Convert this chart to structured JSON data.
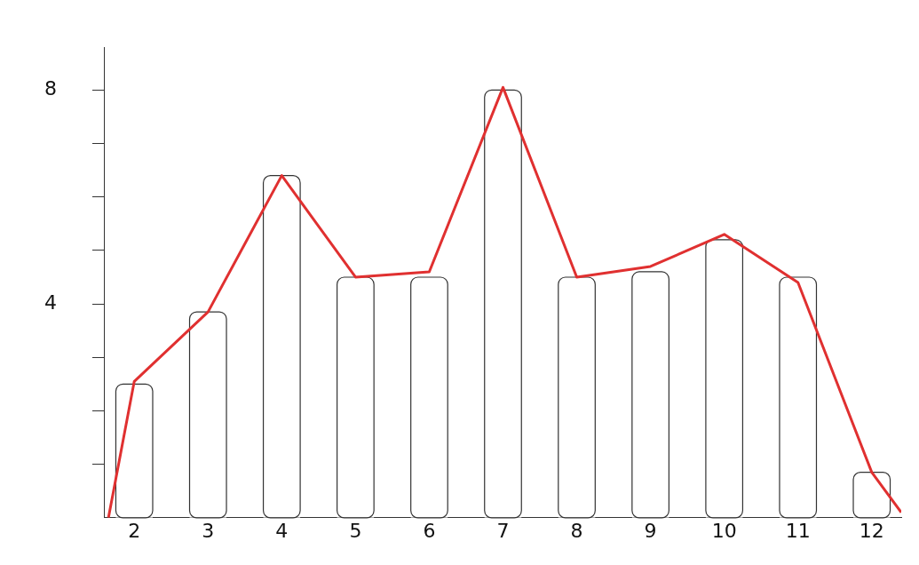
{
  "chart_data": {
    "type": "bar",
    "x": [
      2,
      3,
      4,
      5,
      6,
      7,
      8,
      9,
      10,
      11,
      12
    ],
    "series": [
      {
        "color": "#ffffff",
        "values": [
          2.5,
          3.85,
          6.4,
          4.5,
          4.5,
          8,
          4.5,
          4.6,
          5.2,
          4.5,
          0.85
        ]
      },
      {
        "type": "line",
        "color": "#e03030",
        "x": [
          1.65,
          2,
          3,
          4,
          5,
          6,
          7,
          8,
          9,
          10,
          11,
          12,
          12.4
        ],
        "values": [
          0,
          2.55,
          3.85,
          6.4,
          4.5,
          4.6,
          8.05,
          4.5,
          4.7,
          5.3,
          4.4,
          0.85,
          0.1
        ]
      }
    ],
    "xlim": [
      1.6,
      12.4
    ],
    "xticks": [
      2,
      3,
      4,
      5,
      6,
      7,
      8,
      9,
      10,
      11,
      12
    ],
    "ylim": [
      0,
      8.8
    ],
    "yticks": [
      {
        "value": 1,
        "label": null
      },
      {
        "value": 2,
        "label": null
      },
      {
        "value": 3,
        "label": null
      },
      4,
      {
        "value": 5,
        "label": null
      },
      {
        "value": 6,
        "label": null
      },
      {
        "value": 7,
        "label": null
      },
      8
    ],
    "grid": false,
    "legend": false,
    "marker": "none",
    "line_style": "solid"
  }
}
